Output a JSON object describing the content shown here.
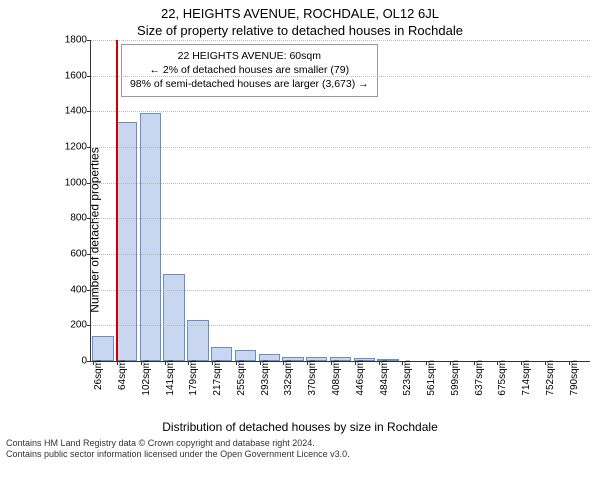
{
  "title_line1": "22, HEIGHTS AVENUE, ROCHDALE, OL12 6JL",
  "title_line2": "Size of property relative to detached houses in Rochdale",
  "y_axis_label": "Number of detached properties",
  "x_axis_label": "Distribution of detached houses by size in Rochdale",
  "footer_line1": "Contains HM Land Registry data © Crown copyright and database right 2024.",
  "footer_line2": "Contains public sector information licensed under the Open Government Licence v3.0.",
  "legend": {
    "line1": "22 HEIGHTS AVENUE: 60sqm",
    "line2": "← 2% of detached houses are smaller (79)",
    "line3": "98% of semi-detached houses are larger (3,673) →"
  },
  "chart": {
    "type": "histogram",
    "ylim": [
      0,
      1800
    ],
    "ytick_step": 200,
    "background_color": "#ffffff",
    "grid_color": "#bbbbbb",
    "bar_fill": "#c9d6f0",
    "bar_stroke": "#6b8cc7",
    "bar_width_ratio": 0.9,
    "marker_line": {
      "color": "#cc0000",
      "width": 2,
      "category_index": 1
    },
    "fontsize_ticks": 10,
    "fontsize_labels": 12,
    "fontsize_title": 13,
    "categories": [
      "26sqm",
      "64sqm",
      "102sqm",
      "141sqm",
      "179sqm",
      "217sqm",
      "255sqm",
      "293sqm",
      "332sqm",
      "370sqm",
      "408sqm",
      "446sqm",
      "484sqm",
      "523sqm",
      "561sqm",
      "599sqm",
      "637sqm",
      "675sqm",
      "714sqm",
      "752sqm",
      "790sqm"
    ],
    "values": [
      140,
      1340,
      1390,
      490,
      230,
      80,
      60,
      40,
      25,
      20,
      20,
      15,
      10,
      0,
      0,
      0,
      0,
      0,
      0,
      0,
      0
    ]
  }
}
